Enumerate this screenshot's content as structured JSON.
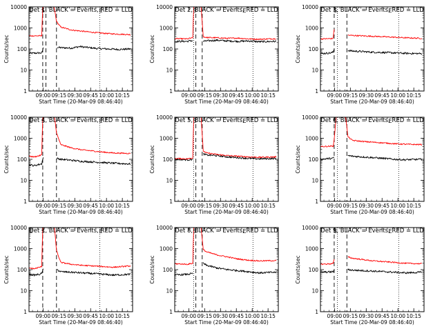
{
  "chart_data": [
    {
      "type": "line",
      "title": "Det 1, BLACK = Events, RED = LLD",
      "xlabel": "Start Time (20-Mar-09 08:46:40)",
      "ylabel": "Counts/sec",
      "ylim": [
        1,
        10000
      ],
      "yscale": "log",
      "ytick_labels": [
        "1",
        "10",
        "100",
        "1000",
        "10000"
      ],
      "xtick_labels": [
        "09:00",
        "09:15",
        "09:30",
        "09:45",
        "10:00",
        "10:15"
      ],
      "xlim_minutes": [
        0,
        98
      ],
      "xticks_minutes": [
        13.3,
        28.3,
        43.3,
        58.3,
        73.3,
        88.3
      ],
      "markers": [
        {
          "label": "E",
          "t": 0
        },
        {
          "label": "S",
          "t": 13.3
        },
        {
          "label": "E",
          "t": 68
        }
      ],
      "dashed_lines_minutes": [
        13,
        16,
        26
      ],
      "dotted_lines_minutes": [
        67
      ],
      "series": [
        {
          "name": "Events",
          "color": "#000000",
          "t": [
            0,
            12,
            12.5,
            13.5,
            25.5,
            26.5,
            30,
            40,
            48,
            55,
            65,
            75,
            85,
            96
          ],
          "y": [
            62,
            65,
            75,
            110,
            null,
            120,
            115,
            110,
            130,
            118,
            105,
            100,
            95,
            100
          ]
        },
        {
          "name": "LLD",
          "color": "#ff0000",
          "t": [
            0,
            12,
            13,
            15,
            20,
            24,
            26,
            30,
            40,
            50,
            60,
            70,
            80,
            96
          ],
          "y": [
            420,
            420,
            9000,
            15000,
            15000,
            9000,
            2000,
            1100,
            800,
            700,
            620,
            560,
            520,
            480
          ]
        }
      ]
    },
    {
      "type": "line",
      "title": "Det 2, BLACK = Events, RED = LLD",
      "xlabel": "Start Time (20-Mar-09 08:46:40)",
      "ylabel": "Counts/sec",
      "ylim": [
        1,
        10000
      ],
      "yscale": "log",
      "ytick_labels": [
        "1",
        "10",
        "100",
        "1000",
        "10000"
      ],
      "xtick_labels": [
        "09:00",
        "09:15",
        "09:30",
        "09:45",
        "10:00",
        "10:15"
      ],
      "xlim_minutes": [
        0,
        98
      ],
      "xticks_minutes": [
        13.3,
        28.3,
        43.3,
        58.3,
        73.3,
        88.3
      ],
      "markers": [
        {
          "label": "S",
          "t": 19
        },
        {
          "label": "E",
          "t": 66
        }
      ],
      "dashed_lines_minutes": [
        20,
        26
      ],
      "dotted_lines_minutes": [
        18,
        74
      ],
      "series": [
        {
          "name": "Events",
          "color": "#000000",
          "t": [
            0,
            12,
            14,
            17,
            18,
            26,
            27,
            30,
            40,
            50,
            60,
            70,
            80,
            96
          ],
          "y": [
            230,
            230,
            240,
            250,
            null,
            null,
            230,
            240,
            260,
            240,
            230,
            240,
            220,
            230
          ]
        },
        {
          "name": "LLD",
          "color": "#ff0000",
          "t": [
            0,
            12,
            14,
            17,
            18,
            22,
            25,
            27,
            30,
            40,
            50,
            60,
            70,
            80,
            96
          ],
          "y": [
            310,
            300,
            320,
            330,
            12000,
            15000,
            9000,
            380,
            350,
            340,
            320,
            330,
            300,
            290,
            310
          ]
        }
      ]
    },
    {
      "type": "line",
      "title": "Det 3, BLACK = Events, RED = LLD",
      "xlabel": "Start Time (20-Mar-09 08:46:40)",
      "ylabel": "Counts/sec",
      "ylim": [
        1,
        10000
      ],
      "yscale": "log",
      "ytick_labels": [
        "1",
        "10",
        "100",
        "1000",
        "10000"
      ],
      "xtick_labels": [
        "09:00",
        "09:15",
        "09:30",
        "09:45",
        "10:00",
        "10:15"
      ],
      "xlim_minutes": [
        0,
        98
      ],
      "xticks_minutes": [
        13.3,
        28.3,
        43.3,
        58.3,
        73.3,
        88.3
      ],
      "markers": [
        {
          "label": "S",
          "t": 14
        },
        {
          "label": "E",
          "t": 66
        }
      ],
      "dashed_lines_minutes": [
        13,
        25
      ],
      "dotted_lines_minutes": [
        16,
        74
      ],
      "series": [
        {
          "name": "Events",
          "color": "#000000",
          "t": [
            0,
            10,
            12,
            13,
            14,
            15,
            25,
            26,
            30,
            40,
            50,
            60,
            70,
            80,
            96
          ],
          "y": [
            60,
            65,
            70,
            100,
            null,
            null,
            null,
            85,
            80,
            75,
            70,
            68,
            65,
            62,
            60
          ]
        },
        {
          "name": "LLD",
          "color": "#ff0000",
          "t": [
            0,
            10,
            12,
            13,
            14,
            15,
            25,
            26,
            30,
            40,
            50,
            60,
            70,
            80,
            96
          ],
          "y": [
            300,
            310,
            320,
            900,
            null,
            null,
            null,
            450,
            440,
            420,
            400,
            380,
            360,
            340,
            320
          ]
        }
      ]
    },
    {
      "type": "line",
      "title": "Det 4, BLACK = Events, RED = LLD",
      "xlabel": "Start Time (20-Mar-09 08:46:40)",
      "ylabel": "Counts/sec",
      "ylim": [
        1,
        10000
      ],
      "yscale": "log",
      "ytick_labels": [
        "1",
        "10",
        "100",
        "1000",
        "10000"
      ],
      "xtick_labels": [
        "09:00",
        "09:15",
        "09:30",
        "09:45",
        "10:00",
        "10:15"
      ],
      "xlim_minutes": [
        0,
        98
      ],
      "xticks_minutes": [
        13.3,
        28.3,
        43.3,
        58.3,
        73.3,
        88.3
      ],
      "markers": [
        {
          "label": "E",
          "t": 0
        },
        {
          "label": "S",
          "t": 13.3
        },
        {
          "label": "E",
          "t": 68
        }
      ],
      "dashed_lines_minutes": [
        13,
        26
      ],
      "dotted_lines_minutes": [
        67
      ],
      "series": [
        {
          "name": "Events",
          "color": "#000000",
          "t": [
            0,
            5,
            10,
            12,
            12.5,
            13.5,
            25.5,
            26.5,
            30,
            40,
            50,
            60,
            70,
            80,
            96
          ],
          "y": [
            55,
            50,
            58,
            60,
            80,
            120,
            null,
            110,
            100,
            90,
            80,
            75,
            70,
            65,
            60
          ]
        },
        {
          "name": "LLD",
          "color": "#ff0000",
          "t": [
            0,
            5,
            10,
            12,
            13,
            15,
            24,
            26,
            30,
            40,
            50,
            60,
            70,
            80,
            96
          ],
          "y": [
            140,
            130,
            150,
            160,
            9000,
            15000,
            12000,
            1800,
            500,
            350,
            280,
            250,
            220,
            200,
            190
          ]
        }
      ]
    },
    {
      "type": "line",
      "title": "Det 5, BLACK = Events, RED = LLD",
      "xlabel": "Start Time (20-Mar-09 08:46:40)",
      "ylabel": "Counts/sec",
      "ylim": [
        1,
        10000
      ],
      "yscale": "log",
      "ytick_labels": [
        "1",
        "10",
        "100",
        "1000",
        "10000"
      ],
      "xtick_labels": [
        "09:00",
        "09:15",
        "09:30",
        "09:45",
        "10:00",
        "10:15"
      ],
      "xlim_minutes": [
        0,
        98
      ],
      "xticks_minutes": [
        13.3,
        28.3,
        43.3,
        58.3,
        73.3,
        88.3
      ],
      "markers": [
        {
          "label": "S",
          "t": 19
        },
        {
          "label": "E",
          "t": 66
        }
      ],
      "dashed_lines_minutes": [
        20,
        26
      ],
      "dotted_lines_minutes": [
        18,
        74
      ],
      "series": [
        {
          "name": "Events",
          "color": "#000000",
          "t": [
            0,
            12,
            17,
            18,
            26,
            27,
            30,
            40,
            50,
            60,
            70,
            80,
            96
          ],
          "y": [
            100,
            95,
            100,
            null,
            null,
            180,
            160,
            150,
            130,
            120,
            110,
            105,
            110
          ]
        },
        {
          "name": "LLD",
          "color": "#ff0000",
          "t": [
            0,
            12,
            17,
            18,
            22,
            25,
            27,
            30,
            40,
            50,
            60,
            70,
            80,
            96
          ],
          "y": [
            110,
            105,
            115,
            12000,
            15000,
            9000,
            250,
            200,
            170,
            150,
            140,
            130,
            125,
            130
          ]
        }
      ]
    },
    {
      "type": "line",
      "title": "Det 6, BLACK = Events, RED = LLD",
      "xlabel": "Start Time (20-Mar-09 08:46:40)",
      "ylabel": "Counts/sec",
      "ylim": [
        1,
        10000
      ],
      "yscale": "log",
      "ytick_labels": [
        "1",
        "10",
        "100",
        "1000",
        "10000"
      ],
      "xtick_labels": [
        "09:00",
        "09:15",
        "09:30",
        "09:45",
        "10:00",
        "10:15"
      ],
      "xlim_minutes": [
        0,
        98
      ],
      "xticks_minutes": [
        13.3,
        28.3,
        43.3,
        58.3,
        73.3,
        88.3
      ],
      "markers": [
        {
          "label": "S",
          "t": 14
        },
        {
          "label": "E",
          "t": 66
        }
      ],
      "dashed_lines_minutes": [
        13,
        25
      ],
      "dotted_lines_minutes": [
        16,
        74
      ],
      "series": [
        {
          "name": "Events",
          "color": "#000000",
          "t": [
            0,
            10,
            12,
            13,
            14,
            25,
            26,
            30,
            40,
            50,
            60,
            70,
            80,
            96
          ],
          "y": [
            100,
            110,
            110,
            130,
            null,
            null,
            150,
            140,
            130,
            120,
            110,
            100,
            95,
            100
          ]
        },
        {
          "name": "LLD",
          "color": "#ff0000",
          "t": [
            0,
            10,
            12,
            13,
            15,
            20,
            24,
            26,
            30,
            40,
            50,
            60,
            70,
            80,
            96
          ],
          "y": [
            400,
            420,
            420,
            900,
            12000,
            15000,
            9000,
            1200,
            800,
            700,
            650,
            600,
            550,
            520,
            500
          ]
        }
      ]
    },
    {
      "type": "line",
      "title": "Det 7, BLACK = Events, RED = LLD",
      "xlabel": "Start Time (20-Mar-09 08:46:40)",
      "ylabel": "Counts/sec",
      "ylim": [
        1,
        10000
      ],
      "yscale": "log",
      "ytick_labels": [
        "1",
        "10",
        "100",
        "1000",
        "10000"
      ],
      "xtick_labels": [
        "09:00",
        "09:15",
        "09:30",
        "09:45",
        "10:00",
        "10:15"
      ],
      "xlim_minutes": [
        0,
        98
      ],
      "xticks_minutes": [
        13.3,
        28.3,
        43.3,
        58.3,
        73.3,
        88.3
      ],
      "markers": [
        {
          "label": "E",
          "t": 0
        },
        {
          "label": "S",
          "t": 13.3
        },
        {
          "label": "E",
          "t": 68
        }
      ],
      "dashed_lines_minutes": [
        13,
        26
      ],
      "dotted_lines_minutes": [
        67
      ],
      "series": [
        {
          "name": "Events",
          "color": "#000000",
          "t": [
            0,
            5,
            10,
            12,
            12.5,
            13.5,
            25.5,
            26.5,
            30,
            40,
            50,
            60,
            70,
            80,
            96
          ],
          "y": [
            60,
            55,
            60,
            65,
            80,
            100,
            null,
            100,
            80,
            75,
            70,
            65,
            60,
            55,
            60
          ]
        },
        {
          "name": "LLD",
          "color": "#ff0000",
          "t": [
            0,
            5,
            10,
            12,
            13,
            15,
            24,
            26,
            30,
            40,
            50,
            60,
            70,
            80,
            96
          ],
          "y": [
            120,
            110,
            130,
            140,
            9000,
            15000,
            12000,
            800,
            220,
            180,
            160,
            150,
            140,
            130,
            150
          ]
        }
      ]
    },
    {
      "type": "line",
      "title": "Det 8, BLACK = Events, RED = LLD",
      "xlabel": "Start Time (20-Mar-09 08:46:40)",
      "ylabel": "Counts/sec",
      "ylim": [
        1,
        10000
      ],
      "yscale": "log",
      "ytick_labels": [
        "1",
        "10",
        "100",
        "1000",
        "10000"
      ],
      "xtick_labels": [
        "09:00",
        "09:15",
        "09:30",
        "09:45",
        "10:00",
        "10:15"
      ],
      "xlim_minutes": [
        0,
        98
      ],
      "xticks_minutes": [
        13.3,
        28.3,
        43.3,
        58.3,
        73.3,
        88.3
      ],
      "markers": [
        {
          "label": "S",
          "t": 19
        },
        {
          "label": "E",
          "t": 66
        }
      ],
      "dashed_lines_minutes": [
        20,
        26
      ],
      "dotted_lines_minutes": [
        18,
        74
      ],
      "series": [
        {
          "name": "Events",
          "color": "#000000",
          "t": [
            0,
            12,
            17,
            18,
            26,
            27,
            30,
            40,
            50,
            60,
            70,
            80,
            96
          ],
          "y": [
            55,
            60,
            65,
            null,
            null,
            200,
            160,
            120,
            100,
            90,
            80,
            70,
            75
          ]
        },
        {
          "name": "LLD",
          "color": "#ff0000",
          "t": [
            0,
            12,
            17,
            18,
            22,
            25,
            27,
            30,
            40,
            50,
            60,
            70,
            80,
            96
          ],
          "y": [
            190,
            180,
            200,
            12000,
            15000,
            9000,
            900,
            700,
            500,
            400,
            320,
            280,
            260,
            270
          ]
        }
      ]
    },
    {
      "type": "line",
      "title": "Det 9, BLACK = Events, RED = LLD",
      "xlabel": "Start Time (20-Mar-09 08:46:40)",
      "ylabel": "Counts/sec",
      "ylim": [
        1,
        10000
      ],
      "yscale": "log",
      "ytick_labels": [
        "1",
        "10",
        "100",
        "1000",
        "10000"
      ],
      "xtick_labels": [
        "09:00",
        "09:15",
        "09:30",
        "09:45",
        "10:00",
        "10:15"
      ],
      "xlim_minutes": [
        0,
        98
      ],
      "xticks_minutes": [
        13.3,
        28.3,
        43.3,
        58.3,
        73.3,
        88.3
      ],
      "markers": [
        {
          "label": "S",
          "t": 14
        },
        {
          "label": "E",
          "t": 66
        }
      ],
      "dashed_lines_minutes": [
        13,
        25
      ],
      "dotted_lines_minutes": [
        16,
        74
      ],
      "series": [
        {
          "name": "Events",
          "color": "#000000",
          "t": [
            0,
            10,
            12,
            13,
            14,
            25,
            26,
            30,
            40,
            50,
            60,
            70,
            80,
            96
          ],
          "y": [
            75,
            78,
            80,
            90,
            null,
            null,
            100,
            95,
            90,
            85,
            80,
            75,
            70,
            75
          ]
        },
        {
          "name": "LLD",
          "color": "#ff0000",
          "t": [
            0,
            10,
            12,
            13,
            14,
            25,
            26,
            30,
            40,
            50,
            60,
            70,
            80,
            96
          ],
          "y": [
            180,
            190,
            200,
            300,
            null,
            null,
            400,
            350,
            300,
            260,
            240,
            220,
            200,
            190
          ]
        }
      ]
    }
  ]
}
